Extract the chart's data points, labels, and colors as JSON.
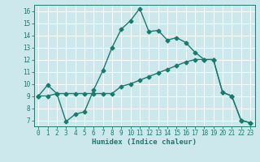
{
  "xlabel": "Humidex (Indice chaleur)",
  "bg_color": "#cce8ec",
  "grid_color": "#ffffff",
  "line_color": "#1a7a6e",
  "xlim": [
    -0.5,
    23.5
  ],
  "ylim": [
    6.5,
    16.5
  ],
  "xticks": [
    0,
    1,
    2,
    3,
    4,
    5,
    6,
    7,
    8,
    9,
    10,
    11,
    12,
    13,
    14,
    15,
    16,
    17,
    18,
    19,
    20,
    21,
    22,
    23
  ],
  "yticks": [
    7,
    8,
    9,
    10,
    11,
    12,
    13,
    14,
    15,
    16
  ],
  "line1_x": [
    0,
    1,
    2,
    3,
    4,
    5,
    6,
    7,
    8,
    9,
    10,
    11,
    12,
    13,
    14,
    15,
    16,
    17,
    18,
    19,
    20,
    21,
    22,
    23
  ],
  "line1_y": [
    9.0,
    9.9,
    9.2,
    6.9,
    7.5,
    7.7,
    9.5,
    11.1,
    13.0,
    14.5,
    15.2,
    16.2,
    14.3,
    14.4,
    13.6,
    13.8,
    13.4,
    12.6,
    12.0,
    12.0,
    9.3,
    9.0,
    7.0,
    6.8
  ],
  "line2_x": [
    0,
    1,
    2,
    3,
    4,
    5,
    6,
    7,
    8,
    9,
    10,
    11,
    12,
    13,
    14,
    15,
    16,
    17,
    18,
    19,
    20,
    21,
    22,
    23
  ],
  "line2_y": [
    9.0,
    9.0,
    9.2,
    9.2,
    9.2,
    9.2,
    9.2,
    9.2,
    9.2,
    9.8,
    10.0,
    10.3,
    10.6,
    10.9,
    11.2,
    11.5,
    11.8,
    12.0,
    12.0,
    12.0,
    9.3,
    9.0,
    7.0,
    6.8
  ],
  "marker_size": 2.5,
  "linewidth": 1.0,
  "label_fontsize": 6.5,
  "tick_fontsize": 5.5
}
